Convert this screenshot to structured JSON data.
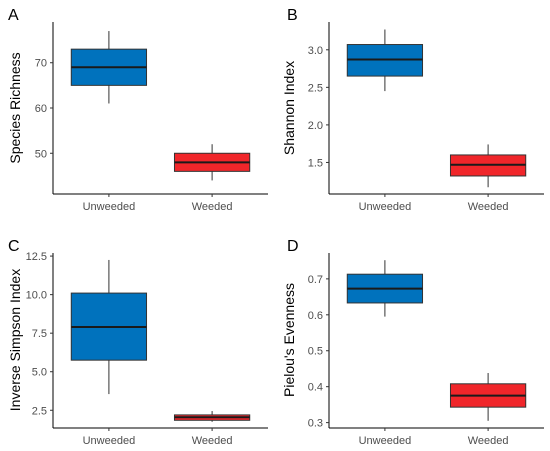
{
  "chart_data": [
    {
      "type": "box",
      "panel_label": "A",
      "ylabel": "Species Richness",
      "categories": [
        "Unweeded",
        "Weeded"
      ],
      "colors": [
        "#0072BD",
        "#F0262A"
      ],
      "boxes": [
        {
          "category": "Unweeded",
          "min": 61,
          "q1": 65,
          "median": 69,
          "q3": 73,
          "max": 77
        },
        {
          "category": "Weeded",
          "min": 44,
          "q1": 46,
          "median": 48,
          "q3": 50,
          "max": 52
        }
      ],
      "ylim": [
        41,
        79
      ],
      "yticks": [
        50,
        60,
        70
      ],
      "ytick_labels": [
        "50",
        "60",
        "70"
      ]
    },
    {
      "type": "box",
      "panel_label": "B",
      "ylabel": "Shannon Index",
      "categories": [
        "Unweeded",
        "Weeded"
      ],
      "colors": [
        "#0072BD",
        "#F0262A"
      ],
      "boxes": [
        {
          "category": "Unweeded",
          "min": 2.45,
          "q1": 2.65,
          "median": 2.87,
          "q3": 3.07,
          "max": 3.27
        },
        {
          "category": "Weeded",
          "min": 1.17,
          "q1": 1.32,
          "median": 1.47,
          "q3": 1.6,
          "max": 1.74
        }
      ],
      "ylim": [
        1.08,
        3.37
      ],
      "yticks": [
        1.5,
        2.0,
        2.5,
        3.0
      ],
      "ytick_labels": [
        "1.5",
        "2.0",
        "2.5",
        "3.0"
      ]
    },
    {
      "type": "box",
      "panel_label": "C",
      "ylabel": "Inverse Simpson Index",
      "categories": [
        "Unweeded",
        "Weeded"
      ],
      "colors": [
        "#0072BD",
        "#F0262A"
      ],
      "boxes": [
        {
          "category": "Unweeded",
          "min": 3.55,
          "q1": 5.75,
          "median": 7.9,
          "q3": 10.1,
          "max": 12.25
        },
        {
          "category": "Weeded",
          "min": 1.75,
          "q1": 1.85,
          "median": 2.05,
          "q3": 2.2,
          "max": 2.45
        }
      ],
      "ylim": [
        1.35,
        12.7
      ],
      "yticks": [
        2.5,
        5.0,
        7.5,
        10.0,
        12.5
      ],
      "ytick_labels": [
        "2.5",
        "5.0",
        "7.5",
        "10.0",
        "12.5"
      ]
    },
    {
      "type": "box",
      "panel_label": "D",
      "ylabel": "Pielou's Evenness",
      "categories": [
        "Unweeded",
        "Weeded"
      ],
      "colors": [
        "#0072BD",
        "#F0262A"
      ],
      "boxes": [
        {
          "category": "Unweeded",
          "min": 0.595,
          "q1": 0.633,
          "median": 0.673,
          "q3": 0.713,
          "max": 0.752
        },
        {
          "category": "Weeded",
          "min": 0.305,
          "q1": 0.343,
          "median": 0.375,
          "q3": 0.408,
          "max": 0.438
        }
      ],
      "ylim": [
        0.285,
        0.772
      ],
      "yticks": [
        0.3,
        0.4,
        0.5,
        0.6,
        0.7
      ],
      "ytick_labels": [
        "0.3",
        "0.4",
        "0.5",
        "0.6",
        "0.7"
      ]
    }
  ]
}
